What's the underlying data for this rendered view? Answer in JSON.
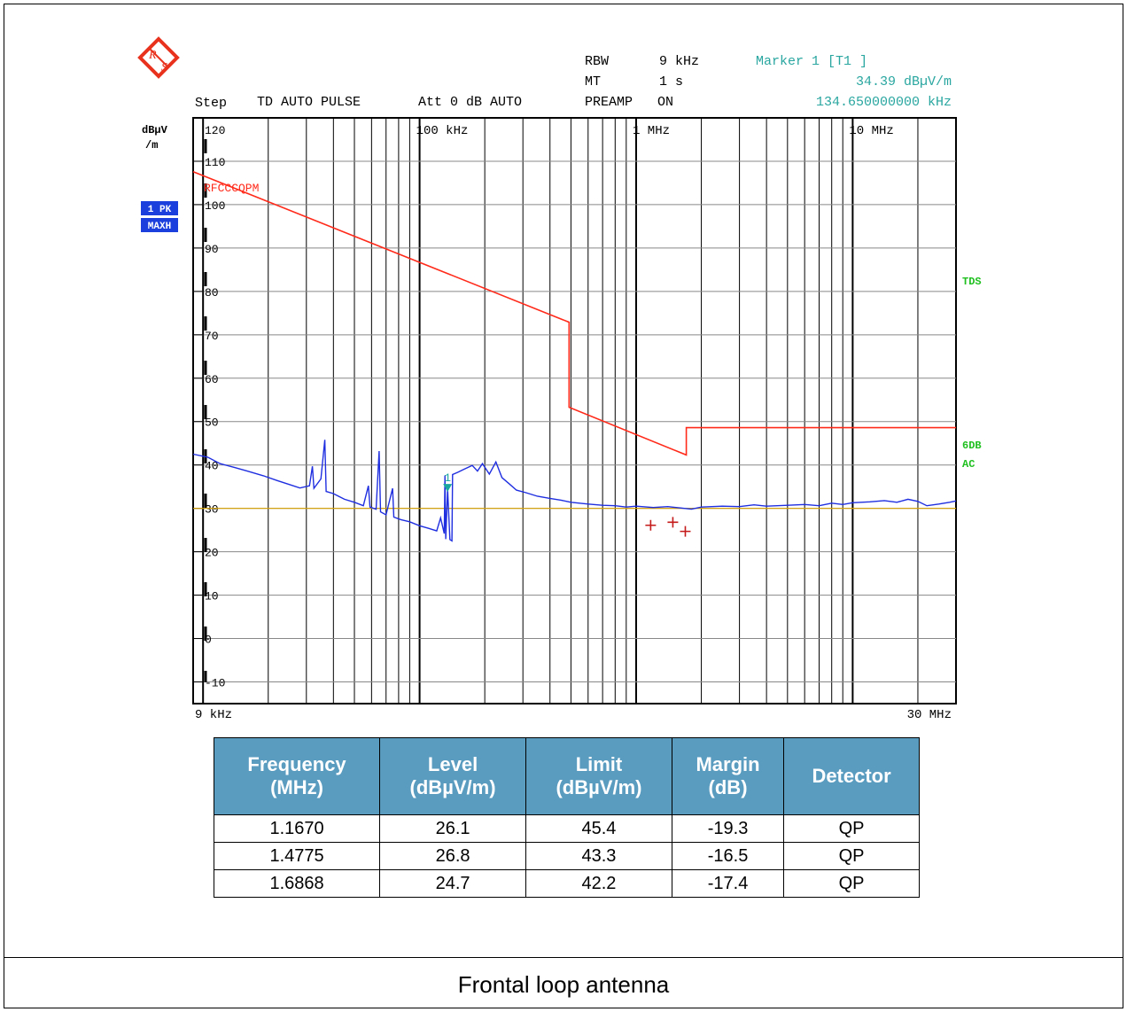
{
  "chart_data": {
    "type": "line",
    "x_scale": "log",
    "y_unit_label_line1": "dBµV",
    "y_unit_label_line2": "/m",
    "xlim": [
      0.009,
      30
    ],
    "ylim": [
      -15,
      120
    ],
    "y_tick_labels": [
      "120",
      "110",
      "100",
      "90",
      "80",
      "70",
      "60",
      "50",
      "40",
      "30",
      "20",
      "10",
      "0",
      "-10"
    ],
    "x_decade_labels": [
      {
        "label": "100 kHz",
        "freq": 0.1
      },
      {
        "label": "1 MHz",
        "freq": 1
      },
      {
        "label": "10 MHz",
        "freq": 10
      }
    ],
    "x_start_label": "9 kHz",
    "x_stop_label": "30 MHz",
    "limit_line": {
      "name": "RFCCCQPM",
      "color": "#ff2a1a",
      "points": [
        [
          0.009,
          107.6
        ],
        [
          0.49,
          72.9
        ],
        [
          0.49,
          53.3
        ],
        [
          1.705,
          42.3
        ],
        [
          1.705,
          48.6
        ],
        [
          30,
          48.6
        ]
      ]
    },
    "trace": {
      "color": "#1f2fe0",
      "points": [
        [
          0.009,
          42.5
        ],
        [
          0.0105,
          41.8
        ],
        [
          0.012,
          40.3
        ],
        [
          0.014,
          39.4
        ],
        [
          0.016,
          38.6
        ],
        [
          0.019,
          37.5
        ],
        [
          0.022,
          36.4
        ],
        [
          0.025,
          35.5
        ],
        [
          0.028,
          34.7
        ],
        [
          0.031,
          35.2
        ],
        [
          0.032,
          39.7
        ],
        [
          0.0325,
          34.6
        ],
        [
          0.035,
          36.8
        ],
        [
          0.0365,
          45.8
        ],
        [
          0.037,
          33.9
        ],
        [
          0.04,
          33.4
        ],
        [
          0.045,
          32.1
        ],
        [
          0.05,
          31.4
        ],
        [
          0.055,
          30.6
        ],
        [
          0.058,
          35.2
        ],
        [
          0.059,
          30.3
        ],
        [
          0.063,
          29.8
        ],
        [
          0.065,
          43.2
        ],
        [
          0.066,
          29.2
        ],
        [
          0.07,
          28.5
        ],
        [
          0.075,
          34.6
        ],
        [
          0.076,
          28.0
        ],
        [
          0.082,
          27.4
        ],
        [
          0.09,
          26.9
        ],
        [
          0.1,
          26.0
        ],
        [
          0.11,
          25.4
        ],
        [
          0.12,
          24.8
        ],
        [
          0.125,
          27.8
        ],
        [
          0.13,
          24.2
        ],
        [
          0.131,
          37.6
        ],
        [
          0.132,
          22.9
        ],
        [
          0.1347,
          34.4
        ],
        [
          0.138,
          22.8
        ],
        [
          0.141,
          22.5
        ],
        [
          0.142,
          37.8
        ],
        [
          0.15,
          38.3
        ],
        [
          0.16,
          39.0
        ],
        [
          0.175,
          39.9
        ],
        [
          0.185,
          38.6
        ],
        [
          0.195,
          40.3
        ],
        [
          0.21,
          37.9
        ],
        [
          0.225,
          40.7
        ],
        [
          0.24,
          37.1
        ],
        [
          0.26,
          35.6
        ],
        [
          0.28,
          34.2
        ],
        [
          0.31,
          33.6
        ],
        [
          0.35,
          32.8
        ],
        [
          0.4,
          32.3
        ],
        [
          0.45,
          31.9
        ],
        [
          0.5,
          31.4
        ],
        [
          0.6,
          31.0
        ],
        [
          0.7,
          30.7
        ],
        [
          0.8,
          30.6
        ],
        [
          0.9,
          30.3
        ],
        [
          1.0,
          30.5
        ],
        [
          1.2,
          30.2
        ],
        [
          1.4,
          30.4
        ],
        [
          1.6,
          30.1
        ],
        [
          1.8,
          29.8
        ],
        [
          2.0,
          30.3
        ],
        [
          2.5,
          30.5
        ],
        [
          3.0,
          30.4
        ],
        [
          3.5,
          30.8
        ],
        [
          4.0,
          30.5
        ],
        [
          5.0,
          30.7
        ],
        [
          6.0,
          30.9
        ],
        [
          7.0,
          30.6
        ],
        [
          8.0,
          31.2
        ],
        [
          9.0,
          30.9
        ],
        [
          10.0,
          31.3
        ],
        [
          12.0,
          31.5
        ],
        [
          14.0,
          31.8
        ],
        [
          16.0,
          31.4
        ],
        [
          18.0,
          32.1
        ],
        [
          20.0,
          31.6
        ],
        [
          22.0,
          30.6
        ],
        [
          25.0,
          31.0
        ],
        [
          28.0,
          31.4
        ],
        [
          30.0,
          31.7
        ]
      ]
    },
    "reference_line": {
      "value": 30,
      "color": "#d9a400"
    },
    "qp_points": [
      {
        "freq": 1.167,
        "level": 26.1
      },
      {
        "freq": 1.4775,
        "level": 26.8
      },
      {
        "freq": 1.6868,
        "level": 24.7
      }
    ],
    "marker": {
      "label": "1",
      "freq": 0.13465,
      "level": 34.39
    },
    "header": {
      "step_label": "Step",
      "detector_label": "TD AUTO PULSE",
      "att_label": "Att 0 dB AUTO",
      "rbw_label": "RBW",
      "rbw_value": "9 kHz",
      "mt_label": "MT",
      "mt_value": "1 s",
      "preamp_label": "PREAMP",
      "preamp_value": "ON",
      "marker_title": "Marker 1 [T1 ]",
      "marker_level": "34.39 dBµV/m",
      "marker_freq": "134.650000000 kHz"
    },
    "trace_badges": [
      "1 PK",
      "MAXH"
    ],
    "side_labels": [
      "TDS",
      "6DB",
      "AC"
    ],
    "logo_text": "RS"
  },
  "table": {
    "headers": [
      {
        "line1": "Frequency",
        "line2": "(MHz)"
      },
      {
        "line1": "Level",
        "line2": "(dBµV/m)"
      },
      {
        "line1": "Limit",
        "line2": "(dBµV/m)"
      },
      {
        "line1": "Margin",
        "line2": "(dB)"
      },
      {
        "line1": "Detector",
        "line2": ""
      }
    ],
    "rows": [
      [
        "1.1670",
        "26.1",
        "45.4",
        "-19.3",
        "QP"
      ],
      [
        "1.4775",
        "26.8",
        "43.3",
        "-16.5",
        "QP"
      ],
      [
        "1.6868",
        "24.7",
        "42.2",
        "-17.4",
        "QP"
      ]
    ]
  },
  "caption": "Frontal loop antenna"
}
